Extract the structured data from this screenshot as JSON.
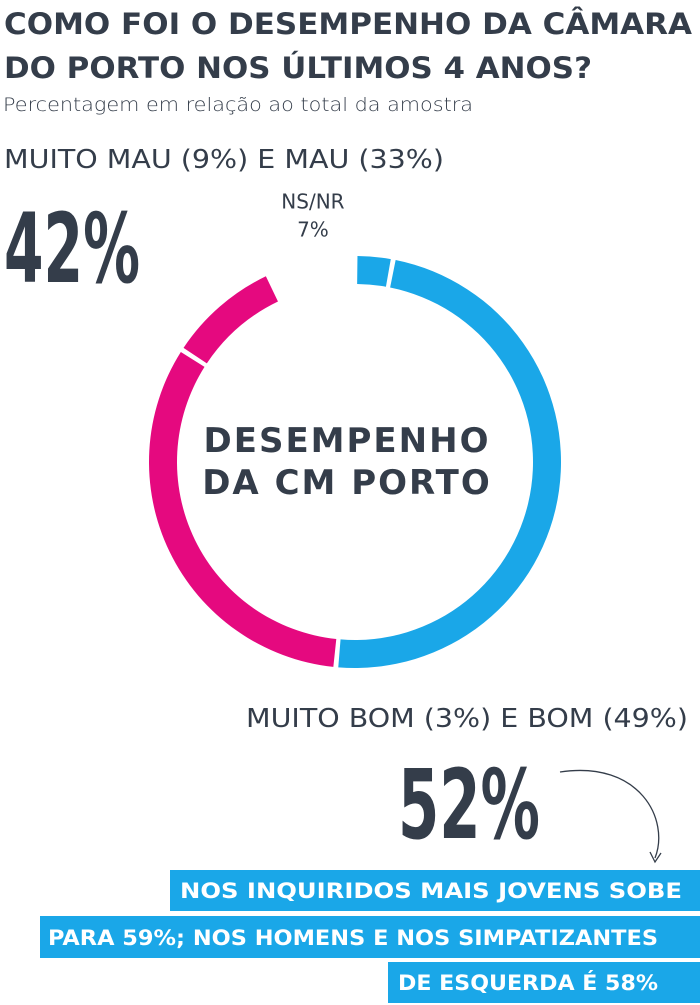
{
  "chart_data": {
    "type": "donut",
    "title": [
      "COMO FOI O DESEMPENHO DA CÂMARA",
      "DO PORTO NOS ÚLTIMOS 4 ANOS?"
    ],
    "subtitle": "Percentagem em relação ao total da amostra",
    "center_label": [
      "DESEMPENHO",
      "DA CM PORTO"
    ],
    "categories": [
      null,
      null,
      null,
      null,
      "NS/NR"
    ],
    "values": [
      3,
      49,
      33,
      9,
      7
    ],
    "value_labels": [
      null,
      null,
      null,
      null,
      "7%"
    ],
    "colors": [
      "#1aa7e8",
      "#1aa7e8",
      "#e5097f",
      "#e5097f",
      null
    ],
    "groups": [
      {
        "name": "MUITO MAU (9%) E MAU (33%)",
        "total": "42%"
      },
      {
        "name": "MUITO BOM (3%) E BOM (49%)",
        "total": "52%"
      }
    ],
    "note": [
      "NOS INQUIRIDOS MAIS JOVENS SOBE",
      "PARA 59%; NOS HOMENS E NOS SIMPATIZANTES",
      "DE ESQUERDA É 58%"
    ]
  }
}
